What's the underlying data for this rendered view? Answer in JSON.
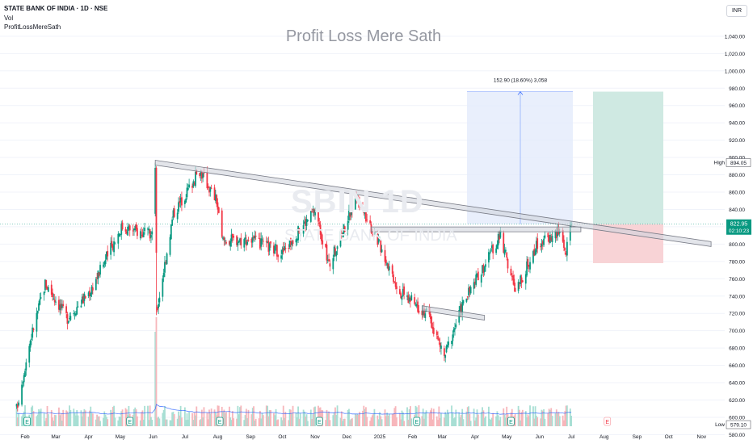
{
  "header": {
    "symbol_line": "STATE BANK OF INDIA · 1D · NSE",
    "indicator_vol": "Vol",
    "indicator_custom": "ProfitLossMereSath"
  },
  "watermark_title": "Profit Loss Mere Sath",
  "symbol_watermark": {
    "ticker": "SBIN 1D",
    "name": "STATE BANK OF INDIA"
  },
  "currency_button": "INR",
  "price_axis": {
    "labels": [
      "1,040.00",
      "1,020.00",
      "1,000.00",
      "980.00",
      "960.00",
      "940.00",
      "920.00",
      "900.00",
      "880.00",
      "860.00",
      "840.00",
      "820.00",
      "800.00",
      "780.00",
      "760.00",
      "740.00",
      "720.00",
      "700.00",
      "680.00",
      "660.00",
      "640.00",
      "620.00",
      "600.00",
      "580.00"
    ],
    "current_price": "822.95",
    "countdown": "02:10:23",
    "high_label": "High",
    "high_value": "894.05",
    "low_label": "Low",
    "low_value": "579.10"
  },
  "time_axis": {
    "labels": [
      "Feb",
      "Mar",
      "Apr",
      "May",
      "Jun",
      "Jul",
      "Aug",
      "Sep",
      "Oct",
      "Nov",
      "Dec",
      "2025",
      "Feb",
      "Mar",
      "Apr",
      "May",
      "Jun",
      "Jul",
      "Aug",
      "Sep",
      "Oct",
      "Nov"
    ]
  },
  "measure_label": "152.90 (18.60%) 3,058",
  "earnings_marker": "E",
  "colors": {
    "up": "#089981",
    "down": "#f23645",
    "volume_ma": "#2962ff",
    "trendline": "#9598a1",
    "current_price_line": "#089981",
    "profit_zone": "#cfe9e2",
    "loss_zone": "#f8d3d6",
    "measure_zone": "#e3ebfb"
  },
  "chart_data": {
    "type": "candlestick",
    "interval": "1D",
    "y_range": [
      572,
      1052
    ],
    "current_price": 822.95,
    "high": 894.05,
    "low": 579.1,
    "key_points": [
      {
        "date": "2024-01-24",
        "close": 610
      },
      {
        "date": "2024-02-06",
        "close": 690
      },
      {
        "date": "2024-02-20",
        "close": 755
      },
      {
        "date": "2024-03-12",
        "close": 715
      },
      {
        "date": "2024-04-02",
        "close": 745
      },
      {
        "date": "2024-05-02",
        "close": 820
      },
      {
        "date": "2024-05-31",
        "close": 810
      },
      {
        "date": "2024-06-03",
        "close": 894
      },
      {
        "date": "2024-06-04",
        "close": 720
      },
      {
        "date": "2024-06-20",
        "close": 835
      },
      {
        "date": "2024-07-15",
        "close": 885
      },
      {
        "date": "2024-07-31",
        "close": 850
      },
      {
        "date": "2024-08-05",
        "close": 805
      },
      {
        "date": "2024-09-01",
        "close": 805
      },
      {
        "date": "2024-10-01",
        "close": 790
      },
      {
        "date": "2024-11-01",
        "close": 840
      },
      {
        "date": "2024-11-14",
        "close": 775
      },
      {
        "date": "2024-12-10",
        "close": 855
      },
      {
        "date": "2025-01-01",
        "close": 800
      },
      {
        "date": "2025-01-20",
        "close": 745
      },
      {
        "date": "2025-02-15",
        "close": 720
      },
      {
        "date": "2025-03-03",
        "close": 670
      },
      {
        "date": "2025-03-20",
        "close": 730
      },
      {
        "date": "2025-04-05",
        "close": 765
      },
      {
        "date": "2025-04-25",
        "close": 810
      },
      {
        "date": "2025-05-09",
        "close": 745
      },
      {
        "date": "2025-05-30",
        "close": 800
      },
      {
        "date": "2025-06-20",
        "close": 815
      },
      {
        "date": "2025-06-26",
        "close": 790
      },
      {
        "date": "2025-07-01",
        "close": 822.95
      }
    ],
    "trendlines": [
      {
        "from": {
          "date": "2024-06-03",
          "price": 894
        },
        "to": {
          "date": "2025-11-10",
          "price": 800
        }
      },
      {
        "from": {
          "date": "2024-12-24",
          "price": 817
        },
        "to": {
          "date": "2025-07-10",
          "price": 817
        }
      },
      {
        "from": {
          "date": "2025-02-10",
          "price": 726
        },
        "to": {
          "date": "2025-04-10",
          "price": 715
        }
      }
    ],
    "position": {
      "entry": 822.95,
      "target": 976,
      "stop": 778,
      "measure": {
        "change": 152.9,
        "percent": 18.6
      }
    }
  }
}
